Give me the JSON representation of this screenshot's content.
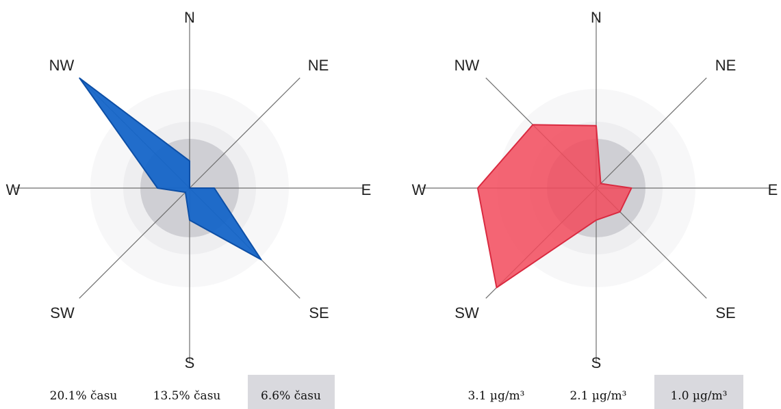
{
  "chart_data": [
    {
      "type": "radar",
      "directions": [
        "N",
        "NE",
        "E",
        "SE",
        "S",
        "SW",
        "W",
        "NW"
      ],
      "values": [
        5.5,
        0.0,
        5.0,
        20.5,
        6.5,
        1.2,
        6.5,
        31.5
      ],
      "value_unit": "% času",
      "color": "#1565c8",
      "rings": [
        20.1,
        13.5,
        6.6
      ],
      "legend": [
        "20.1% času",
        "13.5% času",
        "6.6% času"
      ]
    },
    {
      "type": "radar",
      "directions": [
        "N",
        "NE",
        "E",
        "SE",
        "S",
        "SW",
        "W",
        "NW"
      ],
      "values": [
        1.95,
        0.2,
        1.1,
        1.05,
        1.0,
        4.4,
        3.7,
        2.8
      ],
      "value_unit": "µg/m³",
      "color": "#f24a5c",
      "rings": [
        3.1,
        2.1,
        1.0
      ],
      "legend": [
        "3.1 µg/m³",
        "2.1 µg/m³",
        "1.0 µg/m³"
      ]
    }
  ]
}
